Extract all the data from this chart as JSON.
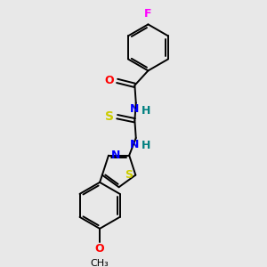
{
  "background_color": "#e8e8e8",
  "bond_color": "#000000",
  "atom_colors": {
    "F": "#ff00ff",
    "O": "#ff0000",
    "N": "#0000ff",
    "S": "#cccc00",
    "H": "#008080",
    "C": "#000000"
  },
  "figsize": [
    3.0,
    3.0
  ],
  "dpi": 100
}
